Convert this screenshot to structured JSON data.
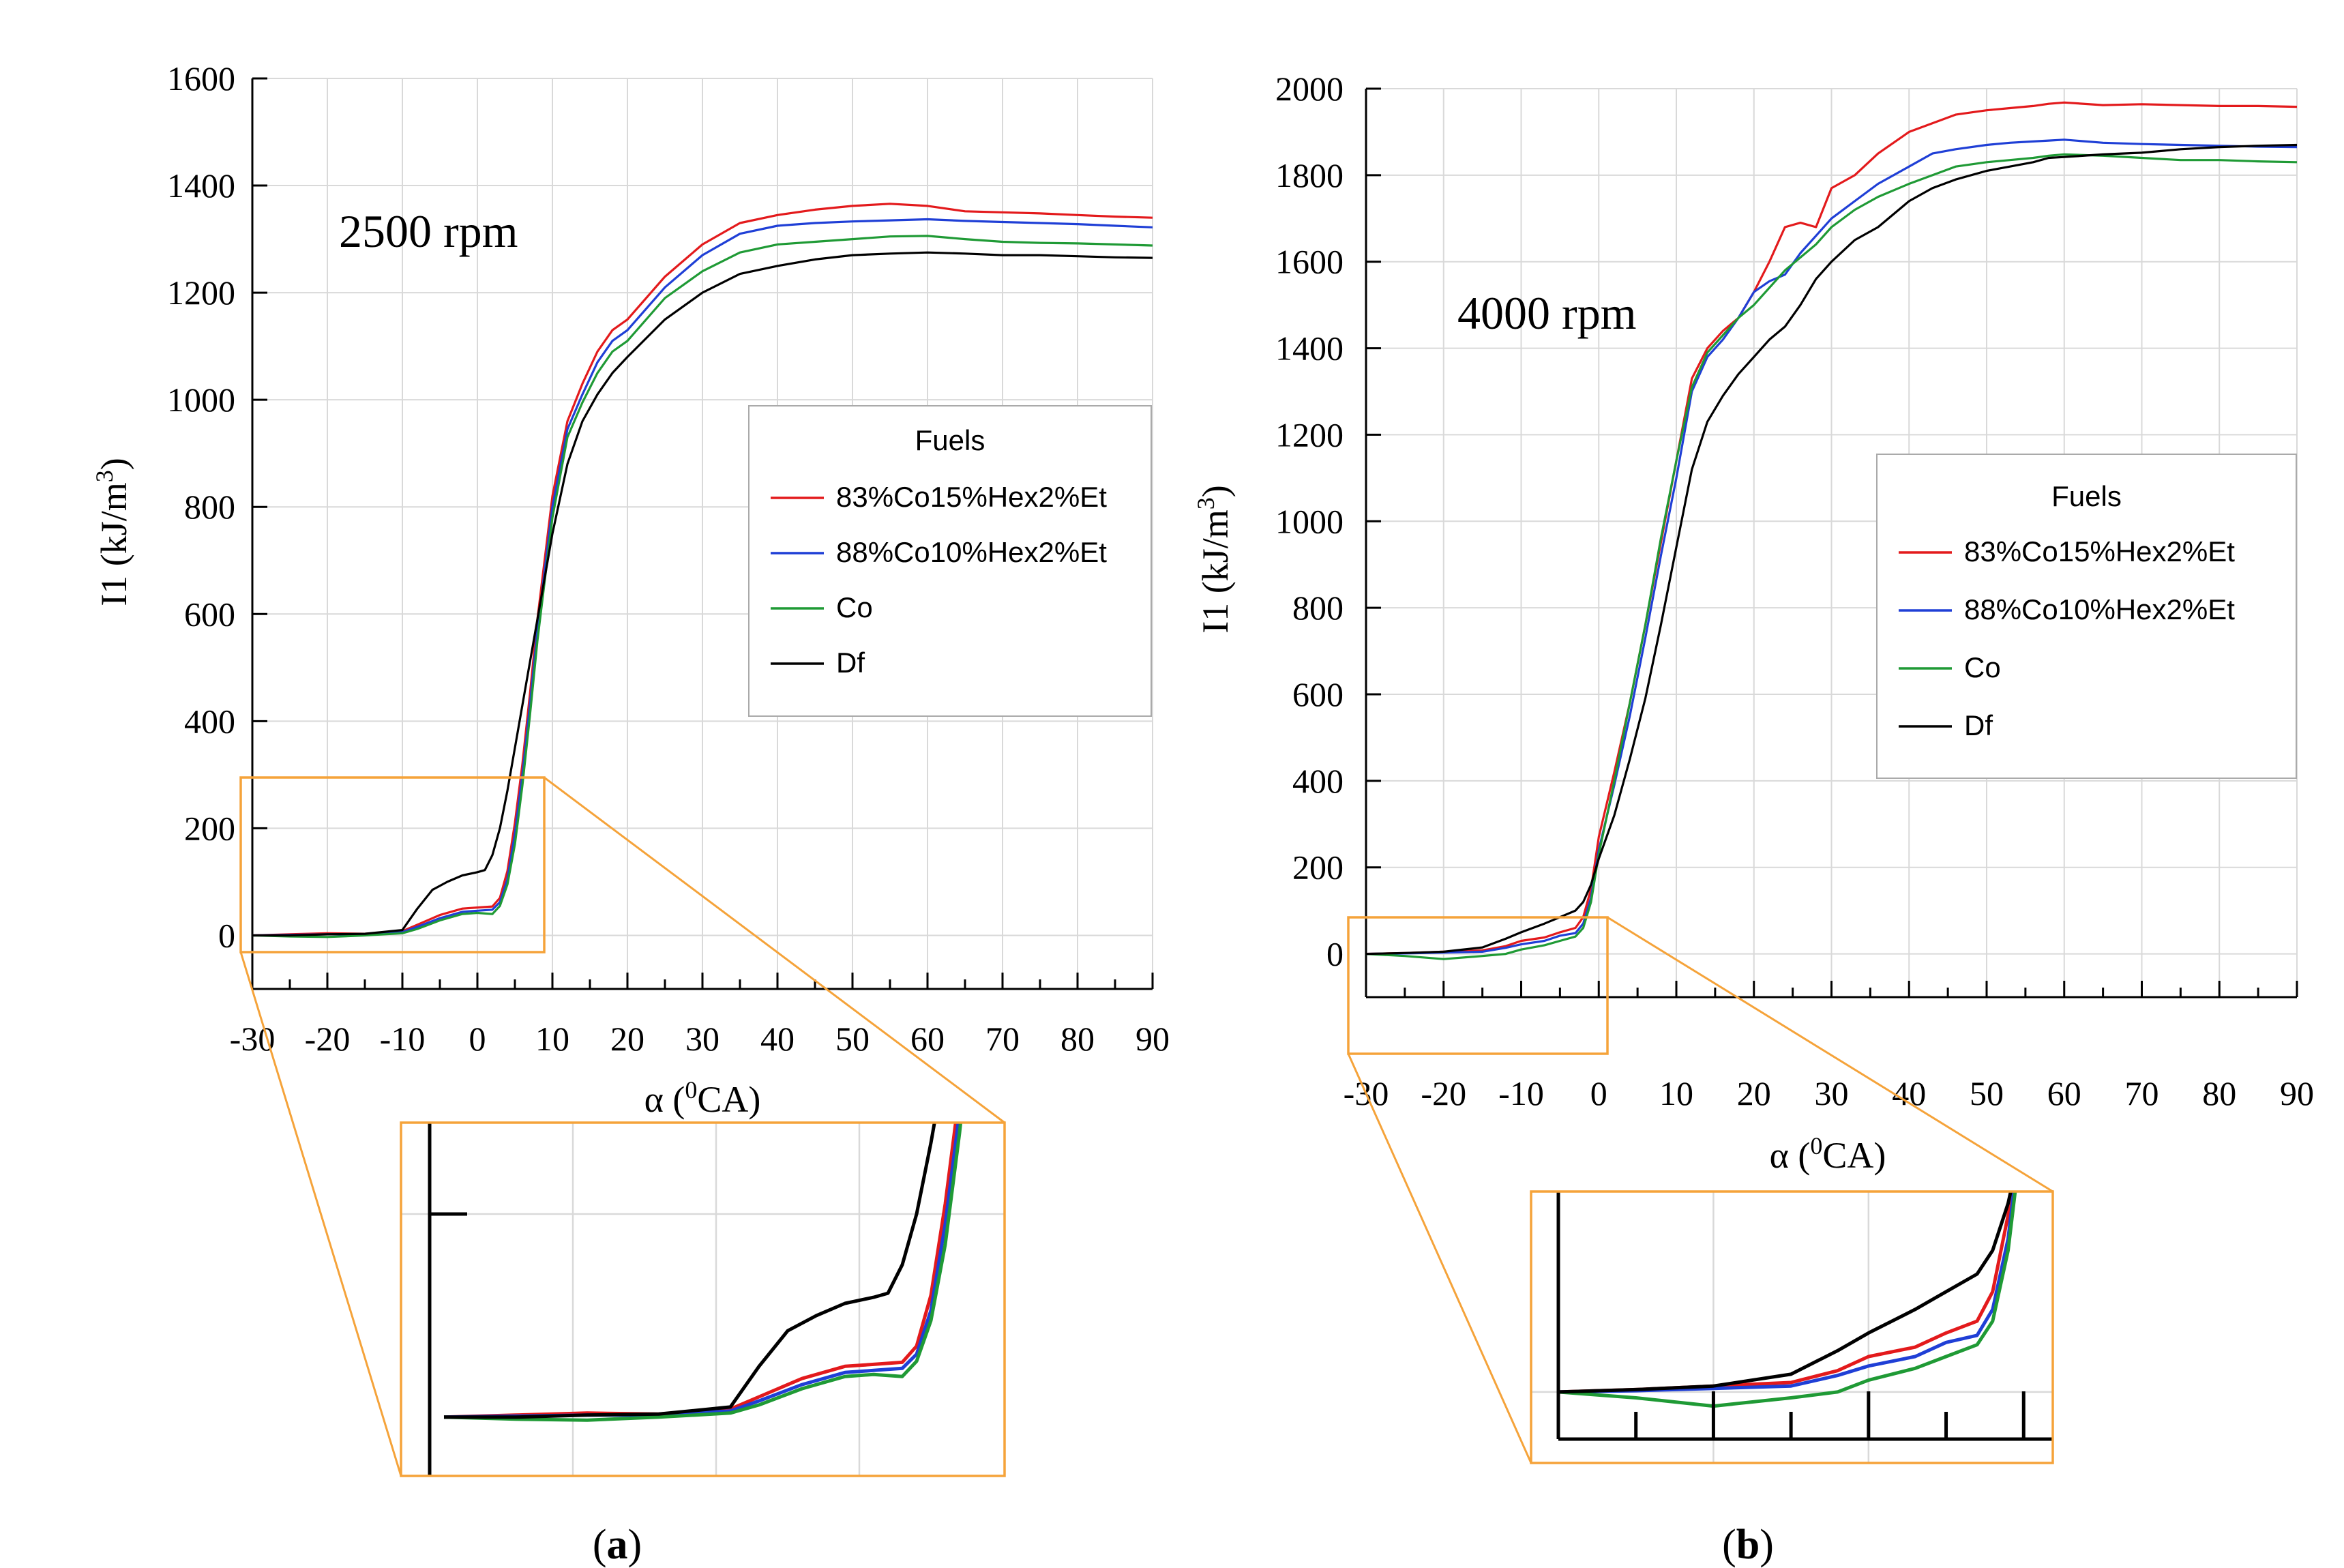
{
  "chart_data": [
    {
      "type": "line",
      "panel": "(a)",
      "panel_letter": "a",
      "annotation": "2500 rpm",
      "xlabel": "α (⁰CA)",
      "xlabel_parts": {
        "alpha": "α (",
        "sup": "0",
        "rest": "CA)"
      },
      "ylabel_parts": {
        "main": "I1 (kJ/m",
        "sup": "3",
        "end": ")"
      },
      "xlim": [
        -30,
        90
      ],
      "ylim": [
        -100,
        1600
      ],
      "xticks": [
        -30,
        -20,
        -10,
        0,
        10,
        20,
        30,
        40,
        50,
        60,
        70,
        80,
        90
      ],
      "yticks": [
        0,
        200,
        400,
        600,
        800,
        1000,
        1200,
        1400,
        1600
      ],
      "grid": true,
      "legend_title": "Fuels",
      "legend_position": "center-right",
      "inset_range": {
        "x": [
          -31,
          9
        ],
        "y": [
          -25,
          290
        ]
      },
      "series": [
        {
          "name": "83%Co15%Hex2%Et",
          "color": "#e31a1c",
          "x": [
            -30,
            -25,
            -20,
            -15,
            -10,
            -8,
            -5,
            -2,
            0,
            2,
            3,
            4,
            5,
            6,
            7,
            8,
            10,
            12,
            14,
            16,
            18,
            20,
            25,
            30,
            35,
            40,
            45,
            50,
            55,
            60,
            65,
            70,
            75,
            80,
            85,
            90
          ],
          "y": [
            0,
            2,
            4,
            3,
            8,
            20,
            38,
            50,
            52,
            54,
            70,
            120,
            210,
            320,
            450,
            590,
            820,
            960,
            1030,
            1090,
            1130,
            1150,
            1230,
            1290,
            1330,
            1345,
            1355,
            1362,
            1366,
            1362,
            1352,
            1350,
            1348,
            1345,
            1342,
            1340
          ]
        },
        {
          "name": "88%Co10%Hex2%Et",
          "color": "#1f3fd6",
          "x": [
            -30,
            -25,
            -20,
            -15,
            -10,
            -8,
            -5,
            -2,
            0,
            2,
            3,
            4,
            5,
            6,
            7,
            8,
            10,
            12,
            14,
            16,
            18,
            20,
            25,
            30,
            35,
            40,
            45,
            50,
            55,
            60,
            65,
            70,
            75,
            80,
            85,
            90
          ],
          "y": [
            0,
            1,
            2,
            2,
            6,
            16,
            32,
            44,
            46,
            48,
            62,
            105,
            190,
            300,
            430,
            570,
            800,
            945,
            1010,
            1070,
            1110,
            1130,
            1210,
            1270,
            1310,
            1325,
            1330,
            1333,
            1335,
            1337,
            1334,
            1332,
            1330,
            1328,
            1325,
            1322
          ]
        },
        {
          "name": "Co",
          "color": "#1f9a35",
          "x": [
            -30,
            -25,
            -20,
            -15,
            -10,
            -8,
            -5,
            -2,
            0,
            2,
            3,
            4,
            5,
            6,
            7,
            8,
            10,
            12,
            14,
            16,
            18,
            20,
            25,
            30,
            35,
            40,
            45,
            50,
            55,
            60,
            65,
            70,
            75,
            80,
            85,
            90
          ],
          "y": [
            0,
            -2,
            -3,
            0,
            4,
            12,
            28,
            40,
            42,
            40,
            55,
            95,
            170,
            280,
            410,
            550,
            780,
            930,
            995,
            1050,
            1090,
            1110,
            1190,
            1240,
            1275,
            1290,
            1295,
            1300,
            1305,
            1306,
            1300,
            1295,
            1293,
            1292,
            1290,
            1288
          ]
        },
        {
          "name": "Df",
          "color": "#000000",
          "x": [
            -30,
            -25,
            -20,
            -15,
            -10,
            -8,
            -6,
            -4,
            -2,
            0,
            1,
            2,
            3,
            4,
            5,
            6,
            7,
            8,
            10,
            12,
            14,
            16,
            18,
            20,
            25,
            30,
            35,
            40,
            45,
            50,
            55,
            60,
            65,
            70,
            75,
            80,
            85,
            90
          ],
          "y": [
            0,
            0,
            2,
            3,
            10,
            50,
            85,
            100,
            112,
            118,
            122,
            150,
            200,
            270,
            350,
            430,
            510,
            590,
            750,
            880,
            960,
            1010,
            1050,
            1080,
            1150,
            1200,
            1235,
            1250,
            1262,
            1270,
            1273,
            1275,
            1273,
            1270,
            1270,
            1268,
            1266,
            1265
          ]
        }
      ]
    },
    {
      "type": "line",
      "panel": "(b)",
      "panel_letter": "b",
      "annotation": "4000 rpm",
      "xlabel": "α (⁰CA)",
      "xlabel_parts": {
        "alpha": "α (",
        "sup": "0",
        "rest": "CA)"
      },
      "ylabel_parts": {
        "main": "I1 (kJ/m",
        "sup": "3",
        "end": ")"
      },
      "xlim": [
        -30,
        90
      ],
      "ylim": [
        -100,
        2000
      ],
      "xticks": [
        -30,
        -20,
        -10,
        0,
        10,
        20,
        30,
        40,
        50,
        60,
        70,
        80,
        90
      ],
      "yticks": [
        0,
        200,
        400,
        600,
        800,
        1000,
        1200,
        1400,
        1600,
        1800,
        2000
      ],
      "grid": true,
      "legend_title": "Fuels",
      "legend_position": "center-right",
      "inset_range": {
        "x": [
          -30,
          1
        ],
        "y": [
          -40,
          170
        ]
      },
      "series": [
        {
          "name": "83%Co15%Hex2%Et",
          "color": "#e31a1c",
          "x": [
            -30,
            -25,
            -20,
            -15,
            -12,
            -10,
            -7,
            -5,
            -3,
            -2,
            -1,
            0,
            2,
            4,
            6,
            8,
            10,
            12,
            14,
            16,
            18,
            20,
            22,
            24,
            26,
            28,
            30,
            33,
            36,
            40,
            43,
            46,
            50,
            53,
            56,
            58,
            60,
            65,
            70,
            75,
            80,
            85,
            90
          ],
          "y": [
            0,
            2,
            5,
            8,
            18,
            30,
            38,
            50,
            60,
            85,
            150,
            270,
            420,
            580,
            760,
            950,
            1140,
            1330,
            1400,
            1440,
            1470,
            1530,
            1600,
            1680,
            1690,
            1680,
            1770,
            1800,
            1850,
            1900,
            1920,
            1940,
            1950,
            1955,
            1960,
            1965,
            1968,
            1962,
            1964,
            1962,
            1960,
            1960,
            1958
          ]
        },
        {
          "name": "88%Co10%Hex2%Et",
          "color": "#1f3fd6",
          "x": [
            -30,
            -25,
            -20,
            -15,
            -12,
            -10,
            -7,
            -5,
            -3,
            -2,
            -1,
            0,
            2,
            4,
            6,
            8,
            10,
            12,
            14,
            16,
            18,
            20,
            22,
            24,
            26,
            28,
            30,
            33,
            36,
            40,
            43,
            46,
            50,
            53,
            56,
            58,
            60,
            65,
            70,
            75,
            80,
            85,
            90
          ],
          "y": [
            0,
            1,
            3,
            5,
            14,
            22,
            30,
            42,
            48,
            70,
            130,
            240,
            390,
            550,
            730,
            920,
            1100,
            1300,
            1380,
            1420,
            1470,
            1530,
            1555,
            1570,
            1620,
            1660,
            1700,
            1740,
            1780,
            1820,
            1850,
            1860,
            1870,
            1875,
            1878,
            1880,
            1882,
            1875,
            1872,
            1870,
            1868,
            1866,
            1865
          ]
        },
        {
          "name": "Co",
          "color": "#1f9a35",
          "x": [
            -30,
            -25,
            -20,
            -15,
            -12,
            -10,
            -7,
            -5,
            -3,
            -2,
            -1,
            0,
            2,
            4,
            6,
            8,
            10,
            12,
            14,
            16,
            18,
            20,
            22,
            24,
            26,
            28,
            30,
            33,
            36,
            40,
            43,
            46,
            50,
            53,
            56,
            58,
            60,
            65,
            70,
            75,
            80,
            85,
            90
          ],
          "y": [
            0,
            -5,
            -12,
            -5,
            0,
            10,
            20,
            30,
            40,
            60,
            120,
            230,
            400,
            580,
            760,
            960,
            1140,
            1310,
            1390,
            1430,
            1470,
            1500,
            1540,
            1580,
            1610,
            1640,
            1680,
            1720,
            1750,
            1780,
            1800,
            1820,
            1830,
            1835,
            1840,
            1845,
            1848,
            1845,
            1840,
            1835,
            1835,
            1832,
            1830
          ]
        },
        {
          "name": "Df",
          "color": "#000000",
          "x": [
            -30,
            -25,
            -20,
            -15,
            -12,
            -10,
            -7,
            -5,
            -3,
            -2,
            -1,
            0,
            2,
            4,
            6,
            8,
            10,
            12,
            14,
            16,
            18,
            20,
            22,
            24,
            26,
            28,
            30,
            33,
            36,
            40,
            43,
            46,
            50,
            53,
            56,
            58,
            60,
            65,
            70,
            75,
            80,
            85,
            90
          ],
          "y": [
            0,
            2,
            5,
            15,
            35,
            50,
            70,
            85,
            100,
            120,
            160,
            220,
            320,
            450,
            590,
            760,
            940,
            1120,
            1230,
            1290,
            1340,
            1380,
            1420,
            1450,
            1500,
            1560,
            1600,
            1650,
            1680,
            1740,
            1770,
            1790,
            1810,
            1820,
            1830,
            1840,
            1842,
            1848,
            1852,
            1860,
            1865,
            1868,
            1870
          ]
        }
      ]
    }
  ]
}
